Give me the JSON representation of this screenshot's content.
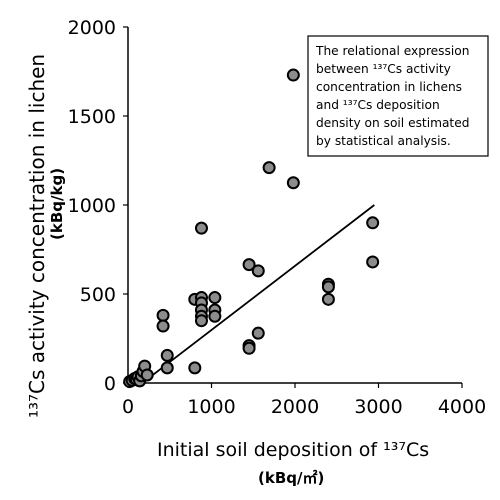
{
  "chart_data": {
    "type": "scatter",
    "xlabel": "Initial soil deposition of ¹³⁷Cs",
    "xlabel_unit": "(kBq/㎡)",
    "ylabel": "¹³⁷Cs activity concentration in lichen",
    "ylabel_unit": "(kBq/kg)",
    "xlim": [
      0,
      4000
    ],
    "ylim": [
      0,
      2000
    ],
    "xticks": [
      "0",
      "1000",
      "2000",
      "3000",
      "4000"
    ],
    "yticks": [
      "0",
      "500",
      "1000",
      "1500",
      "2000"
    ],
    "grid": false,
    "points": [
      {
        "x": 20,
        "y": 8
      },
      {
        "x": 50,
        "y": 15
      },
      {
        "x": 80,
        "y": 25
      },
      {
        "x": 100,
        "y": 20
      },
      {
        "x": 120,
        "y": 35
      },
      {
        "x": 140,
        "y": 12
      },
      {
        "x": 160,
        "y": 40
      },
      {
        "x": 180,
        "y": 65
      },
      {
        "x": 200,
        "y": 95
      },
      {
        "x": 230,
        "y": 45
      },
      {
        "x": 420,
        "y": 380
      },
      {
        "x": 420,
        "y": 320
      },
      {
        "x": 470,
        "y": 155
      },
      {
        "x": 470,
        "y": 85
      },
      {
        "x": 800,
        "y": 470
      },
      {
        "x": 800,
        "y": 85
      },
      {
        "x": 880,
        "y": 480
      },
      {
        "x": 880,
        "y": 450
      },
      {
        "x": 880,
        "y": 410
      },
      {
        "x": 880,
        "y": 375
      },
      {
        "x": 880,
        "y": 350
      },
      {
        "x": 880,
        "y": 870
      },
      {
        "x": 1040,
        "y": 480
      },
      {
        "x": 1040,
        "y": 410
      },
      {
        "x": 1040,
        "y": 375
      },
      {
        "x": 1450,
        "y": 665
      },
      {
        "x": 1450,
        "y": 210
      },
      {
        "x": 1450,
        "y": 195
      },
      {
        "x": 1560,
        "y": 630
      },
      {
        "x": 1560,
        "y": 280
      },
      {
        "x": 1690,
        "y": 1210
      },
      {
        "x": 1980,
        "y": 1730
      },
      {
        "x": 1980,
        "y": 1125
      },
      {
        "x": 2400,
        "y": 555
      },
      {
        "x": 2400,
        "y": 540
      },
      {
        "x": 2400,
        "y": 470
      },
      {
        "x": 2930,
        "y": 900
      },
      {
        "x": 2930,
        "y": 680
      }
    ],
    "regression_line": {
      "x": [
        200,
        2950
      ],
      "y": [
        10,
        1000
      ]
    },
    "annotation": {
      "lines": [
        "The relational expression",
        "between ¹³⁷Cs activity",
        "concentration in lichens",
        "and ¹³⁷Cs deposition",
        "density on soil estimated",
        "by statistical analysis."
      ],
      "placement": "top-right"
    },
    "marker_fill": "#8c8c8c",
    "marker_stroke": "#000000"
  }
}
